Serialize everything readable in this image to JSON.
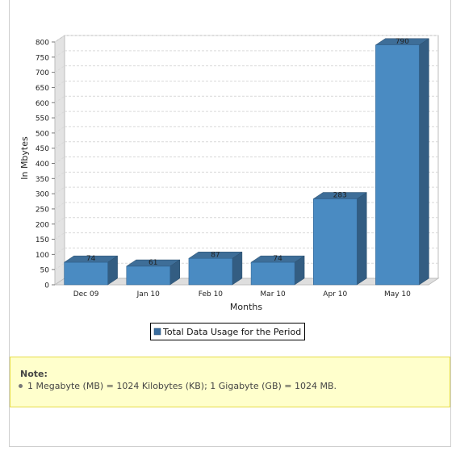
{
  "chart_data": {
    "type": "bar",
    "categories": [
      "Dec 09",
      "Jan 10",
      "Feb 10",
      "Mar 10",
      "Apr 10",
      "May 10"
    ],
    "values": [
      74,
      61,
      87,
      74,
      283,
      790
    ],
    "data_labels": [
      "74",
      "61",
      "87",
      "74",
      "283",
      "790"
    ],
    "xlabel": "Months",
    "ylabel": "In Mbytes",
    "ylim": [
      0,
      800
    ],
    "yticks": [
      0,
      50,
      100,
      150,
      200,
      250,
      300,
      350,
      400,
      450,
      500,
      550,
      600,
      650,
      700,
      750,
      800
    ],
    "ytick_labels": [
      "0",
      "50",
      "100",
      "150",
      "200",
      "250",
      "300",
      "350",
      "400",
      "450",
      "500",
      "550",
      "600",
      "650",
      "700",
      "750",
      "800"
    ],
    "grid": "horizontal dashed",
    "style": "3d",
    "legend": {
      "placement": "bottom-center",
      "entries": [
        "Total Data Usage for the Period"
      ]
    },
    "series": [
      {
        "name": "Total Data Usage for the Period",
        "values": [
          74,
          61,
          87,
          74,
          283,
          790
        ]
      }
    ],
    "colors": {
      "bar_front": "#4a8bc2",
      "bar_top": "#3e6e98",
      "bar_side": "#335d82",
      "wall": "#ffffff",
      "wall_side": "#e3e3e3",
      "grid": "#d9d9d9",
      "legend_swatch": "#3b6e9f"
    }
  },
  "note": {
    "title": "Note:",
    "items": [
      "1 Megabyte (MB) = 1024 Kilobytes (KB); 1 Gigabyte (GB) = 1024 MB."
    ]
  }
}
